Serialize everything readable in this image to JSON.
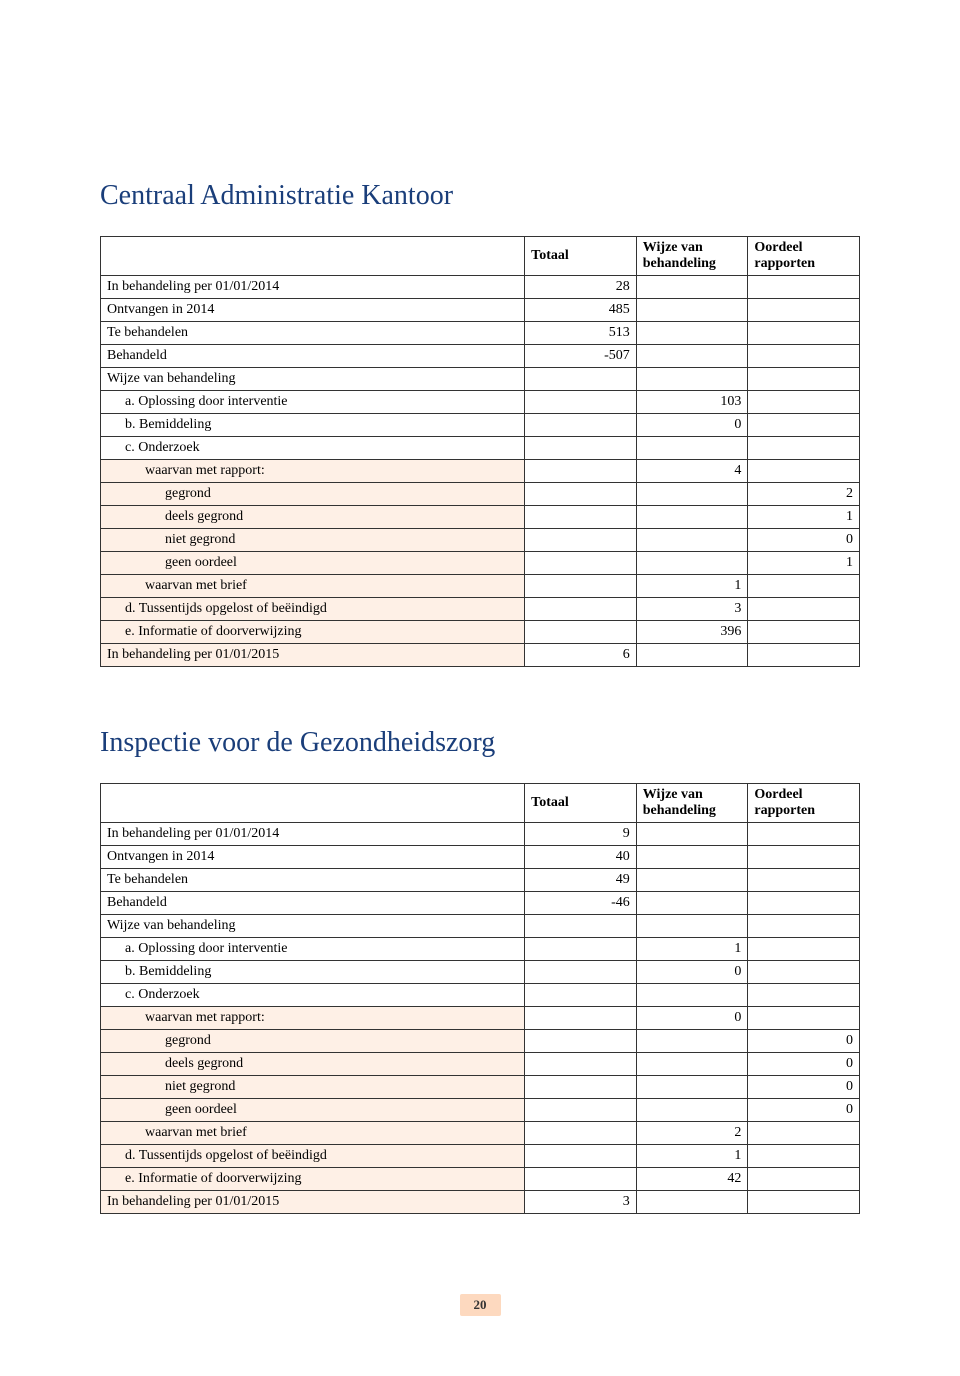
{
  "section1": {
    "title": "Centraal Administratie Kantoor",
    "headers": {
      "totaal": "Totaal",
      "wijze": "Wijze van behandeling",
      "oordeel": "Oordeel rapporten"
    },
    "rows": [
      {
        "label": "In behandeling per 01/01/2014",
        "totaal": "28",
        "indent": 0
      },
      {
        "label": "Ontvangen in 2014",
        "totaal": "485",
        "indent": 0
      },
      {
        "label": "Te behandelen",
        "totaal": "513",
        "indent": 0
      },
      {
        "label": "Behandeld",
        "totaal": "-507",
        "indent": 0
      },
      {
        "label": "Wijze van behandeling",
        "indent": 0
      },
      {
        "label": "a. Oplossing door interventie",
        "wijze": "103",
        "indent": 1
      },
      {
        "label": "b. Bemiddeling",
        "wijze": "0",
        "indent": 1
      },
      {
        "label": "c. Onderzoek",
        "indent": 1
      },
      {
        "label": "waarvan met rapport:",
        "wijze": "4",
        "indent": 2,
        "shade": true
      },
      {
        "label": "gegrond",
        "oordeel": "2",
        "indent": 3,
        "shade": true
      },
      {
        "label": "deels gegrond",
        "oordeel": "1",
        "indent": 3,
        "shade": true
      },
      {
        "label": "niet gegrond",
        "oordeel": "0",
        "indent": 3,
        "shade": true
      },
      {
        "label": "geen oordeel",
        "oordeel": "1",
        "indent": 3,
        "shade": true
      },
      {
        "label": "waarvan met brief",
        "wijze": "1",
        "indent": 2,
        "shade": true
      },
      {
        "label": "d. Tussentijds opgelost of beëindigd",
        "wijze": "3",
        "indent": 1,
        "shade": true
      },
      {
        "label": "e. Informatie of doorverwijzing",
        "wijze": "396",
        "indent": 1,
        "shade": true
      },
      {
        "label": "In behandeling per 01/01/2015",
        "totaal": "6",
        "indent": 0,
        "shade": true
      }
    ]
  },
  "section2": {
    "title": "Inspectie voor de Gezondheidszorg",
    "headers": {
      "totaal": "Totaal",
      "wijze": "Wijze van behandeling",
      "oordeel": "Oordeel rapporten"
    },
    "rows": [
      {
        "label": "In behandeling per 01/01/2014",
        "totaal": "9",
        "indent": 0
      },
      {
        "label": "Ontvangen in 2014",
        "totaal": "40",
        "indent": 0
      },
      {
        "label": "Te behandelen",
        "totaal": "49",
        "indent": 0
      },
      {
        "label": "Behandeld",
        "totaal": "-46",
        "indent": 0
      },
      {
        "label": "Wijze van behandeling",
        "indent": 0
      },
      {
        "label": "a. Oplossing door interventie",
        "wijze": "1",
        "indent": 1
      },
      {
        "label": "b. Bemiddeling",
        "wijze": "0",
        "indent": 1
      },
      {
        "label": "c. Onderzoek",
        "indent": 1
      },
      {
        "label": "waarvan met rapport:",
        "wijze": "0",
        "indent": 2,
        "shade": true
      },
      {
        "label": "gegrond",
        "oordeel": "0",
        "indent": 3,
        "shade": true
      },
      {
        "label": "deels gegrond",
        "oordeel": "0",
        "indent": 3,
        "shade": true
      },
      {
        "label": "niet gegrond",
        "oordeel": "0",
        "indent": 3,
        "shade": true
      },
      {
        "label": "geen oordeel",
        "oordeel": "0",
        "indent": 3,
        "shade": true
      },
      {
        "label": "waarvan met brief",
        "wijze": "2",
        "indent": 2,
        "shade": true
      },
      {
        "label": "d. Tussentijds opgelost of beëindigd",
        "wijze": "1",
        "indent": 1,
        "shade": true
      },
      {
        "label": "e. Informatie of doorverwijzing",
        "wijze": "42",
        "indent": 1,
        "shade": true
      },
      {
        "label": "In behandeling per 01/01/2015",
        "totaal": "3",
        "indent": 0,
        "shade": true
      }
    ]
  },
  "pageNumber": "20"
}
